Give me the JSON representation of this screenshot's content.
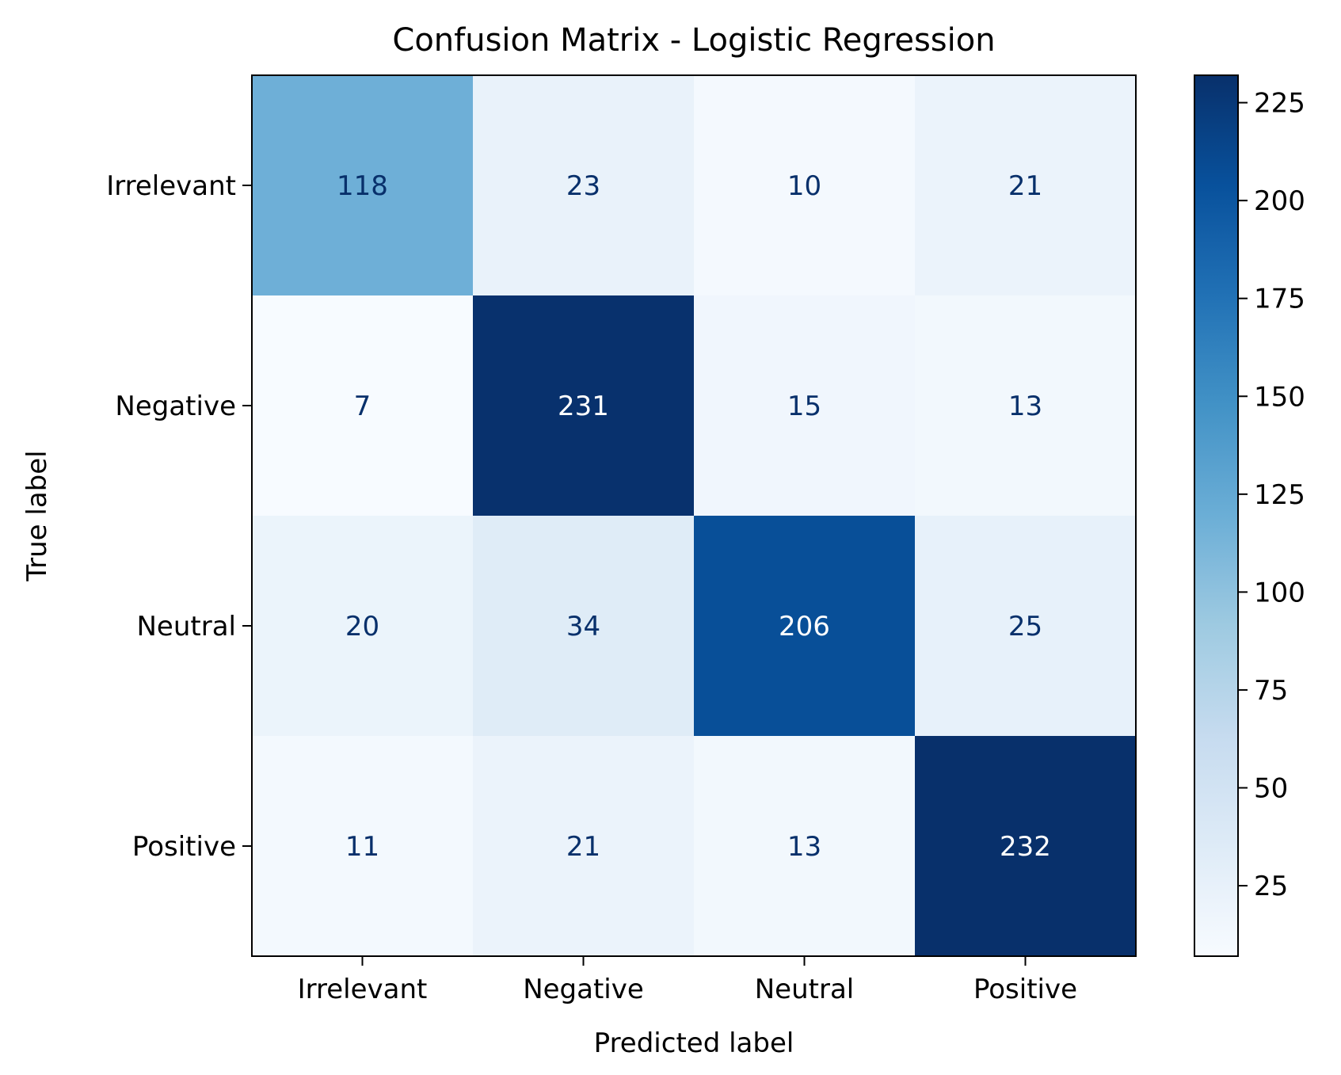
{
  "chart_data": {
    "type": "heatmap",
    "title": "Confusion Matrix - Logistic Regression",
    "xlabel": "Predicted label",
    "ylabel": "True label",
    "x_categories": [
      "Irrelevant",
      "Negative",
      "Neutral",
      "Positive"
    ],
    "y_categories": [
      "Irrelevant",
      "Negative",
      "Neutral",
      "Positive"
    ],
    "values": [
      [
        118,
        23,
        10,
        21
      ],
      [
        7,
        231,
        15,
        13
      ],
      [
        20,
        34,
        206,
        25
      ],
      [
        11,
        21,
        13,
        232
      ]
    ],
    "colormap": "Blues",
    "color_range": [
      7,
      232
    ],
    "colorbar_ticks": [
      25,
      50,
      75,
      100,
      125,
      150,
      175,
      200,
      225
    ],
    "text_color_dark": "#08306b",
    "text_color_light": "#ffffff"
  }
}
